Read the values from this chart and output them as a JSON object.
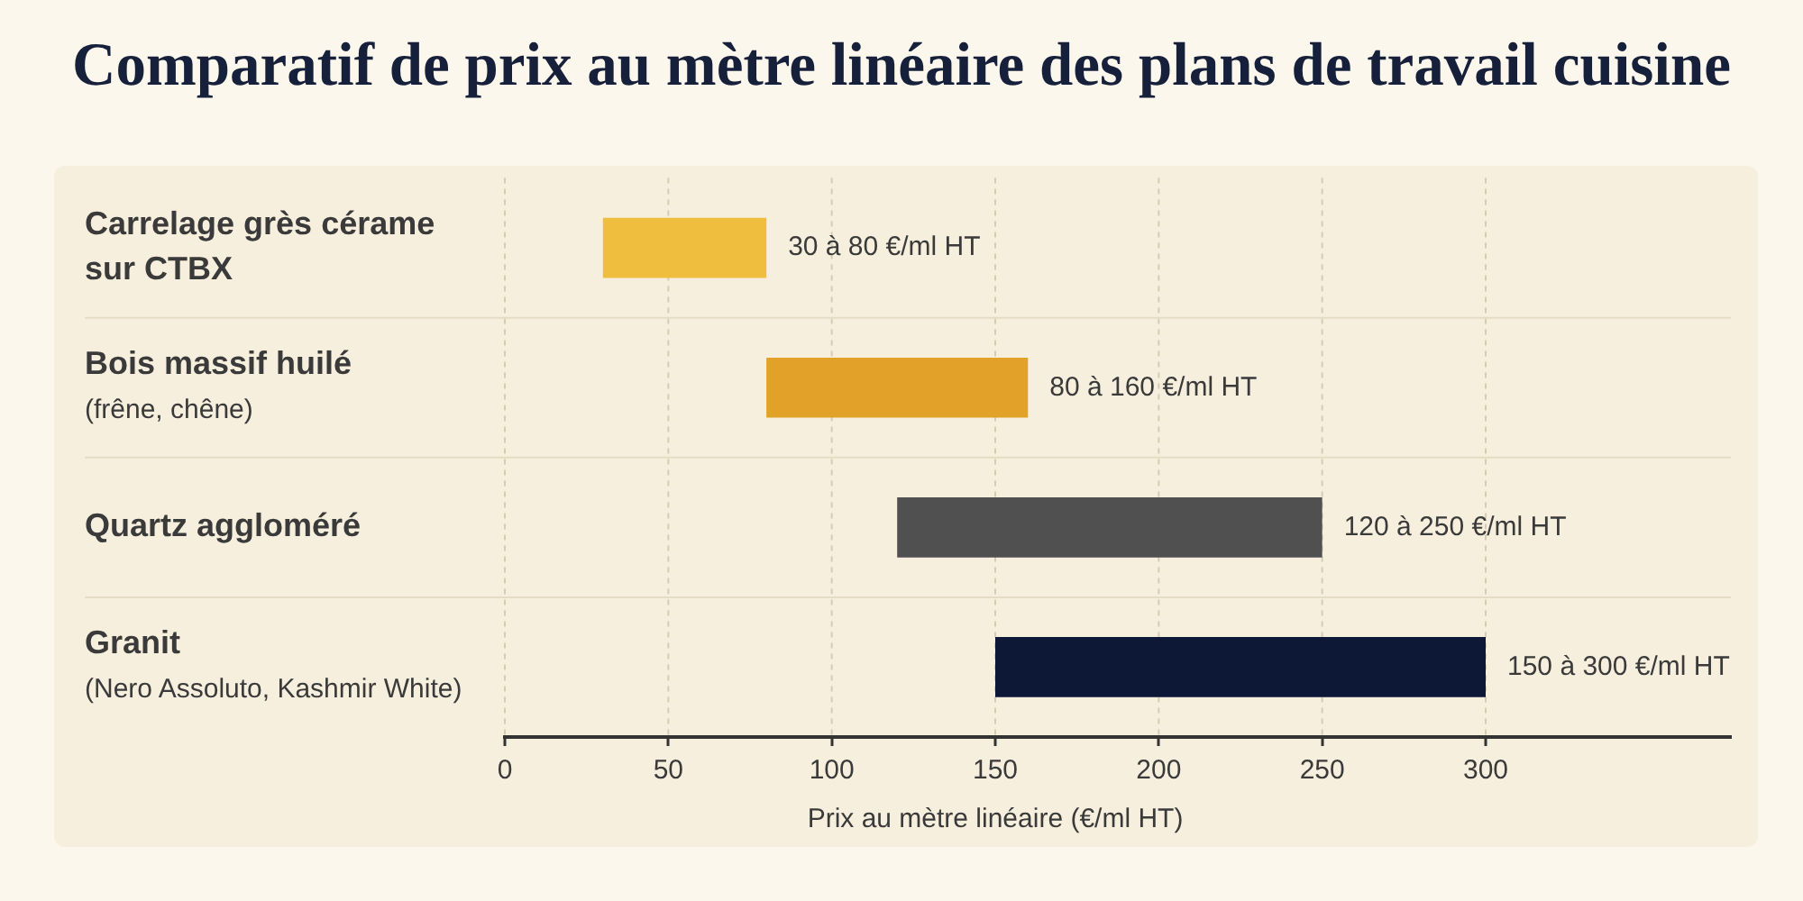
{
  "chart_data": {
    "type": "bar",
    "orientation": "horizontal",
    "title": "Comparatif de prix au mètre linéaire des plans de travail cuisine",
    "xlabel": "Prix au mètre linéaire (€/ml HT)",
    "categories": [
      "Carrelage grès cérame sur CTBX",
      "Bois massif huilé (frêne, chêne)",
      "Quartz aggloméré",
      "Granit (Nero Assoluto, Kashmir White)"
    ],
    "base": [
      30,
      80,
      120,
      150
    ],
    "values": [
      50,
      80,
      130,
      150
    ],
    "colors": [
      "#efbe3f",
      "#e2a128",
      "#505050",
      "#0c1836"
    ],
    "annotations": [
      {
        "text": "30 à 80 €/ml HT",
        "x": 80,
        "y": "Carrelage grès cérame sur CTBX"
      },
      {
        "text": "80 à 160 €/ml HT",
        "x": 160,
        "y": "Bois massif huilé (frêne, chêne)"
      },
      {
        "text": "120 à 250 €/ml HT",
        "x": 250,
        "y": "Quartz aggloméré"
      },
      {
        "text": "150 à 300 €/ml HT",
        "x": 300,
        "y": "Granit (Nero Assoluto, Kashmir White)"
      }
    ],
    "xlim": [
      0,
      375
    ],
    "xticks": [
      0,
      50,
      100,
      150,
      200,
      250,
      300
    ],
    "grid": true
  }
}
